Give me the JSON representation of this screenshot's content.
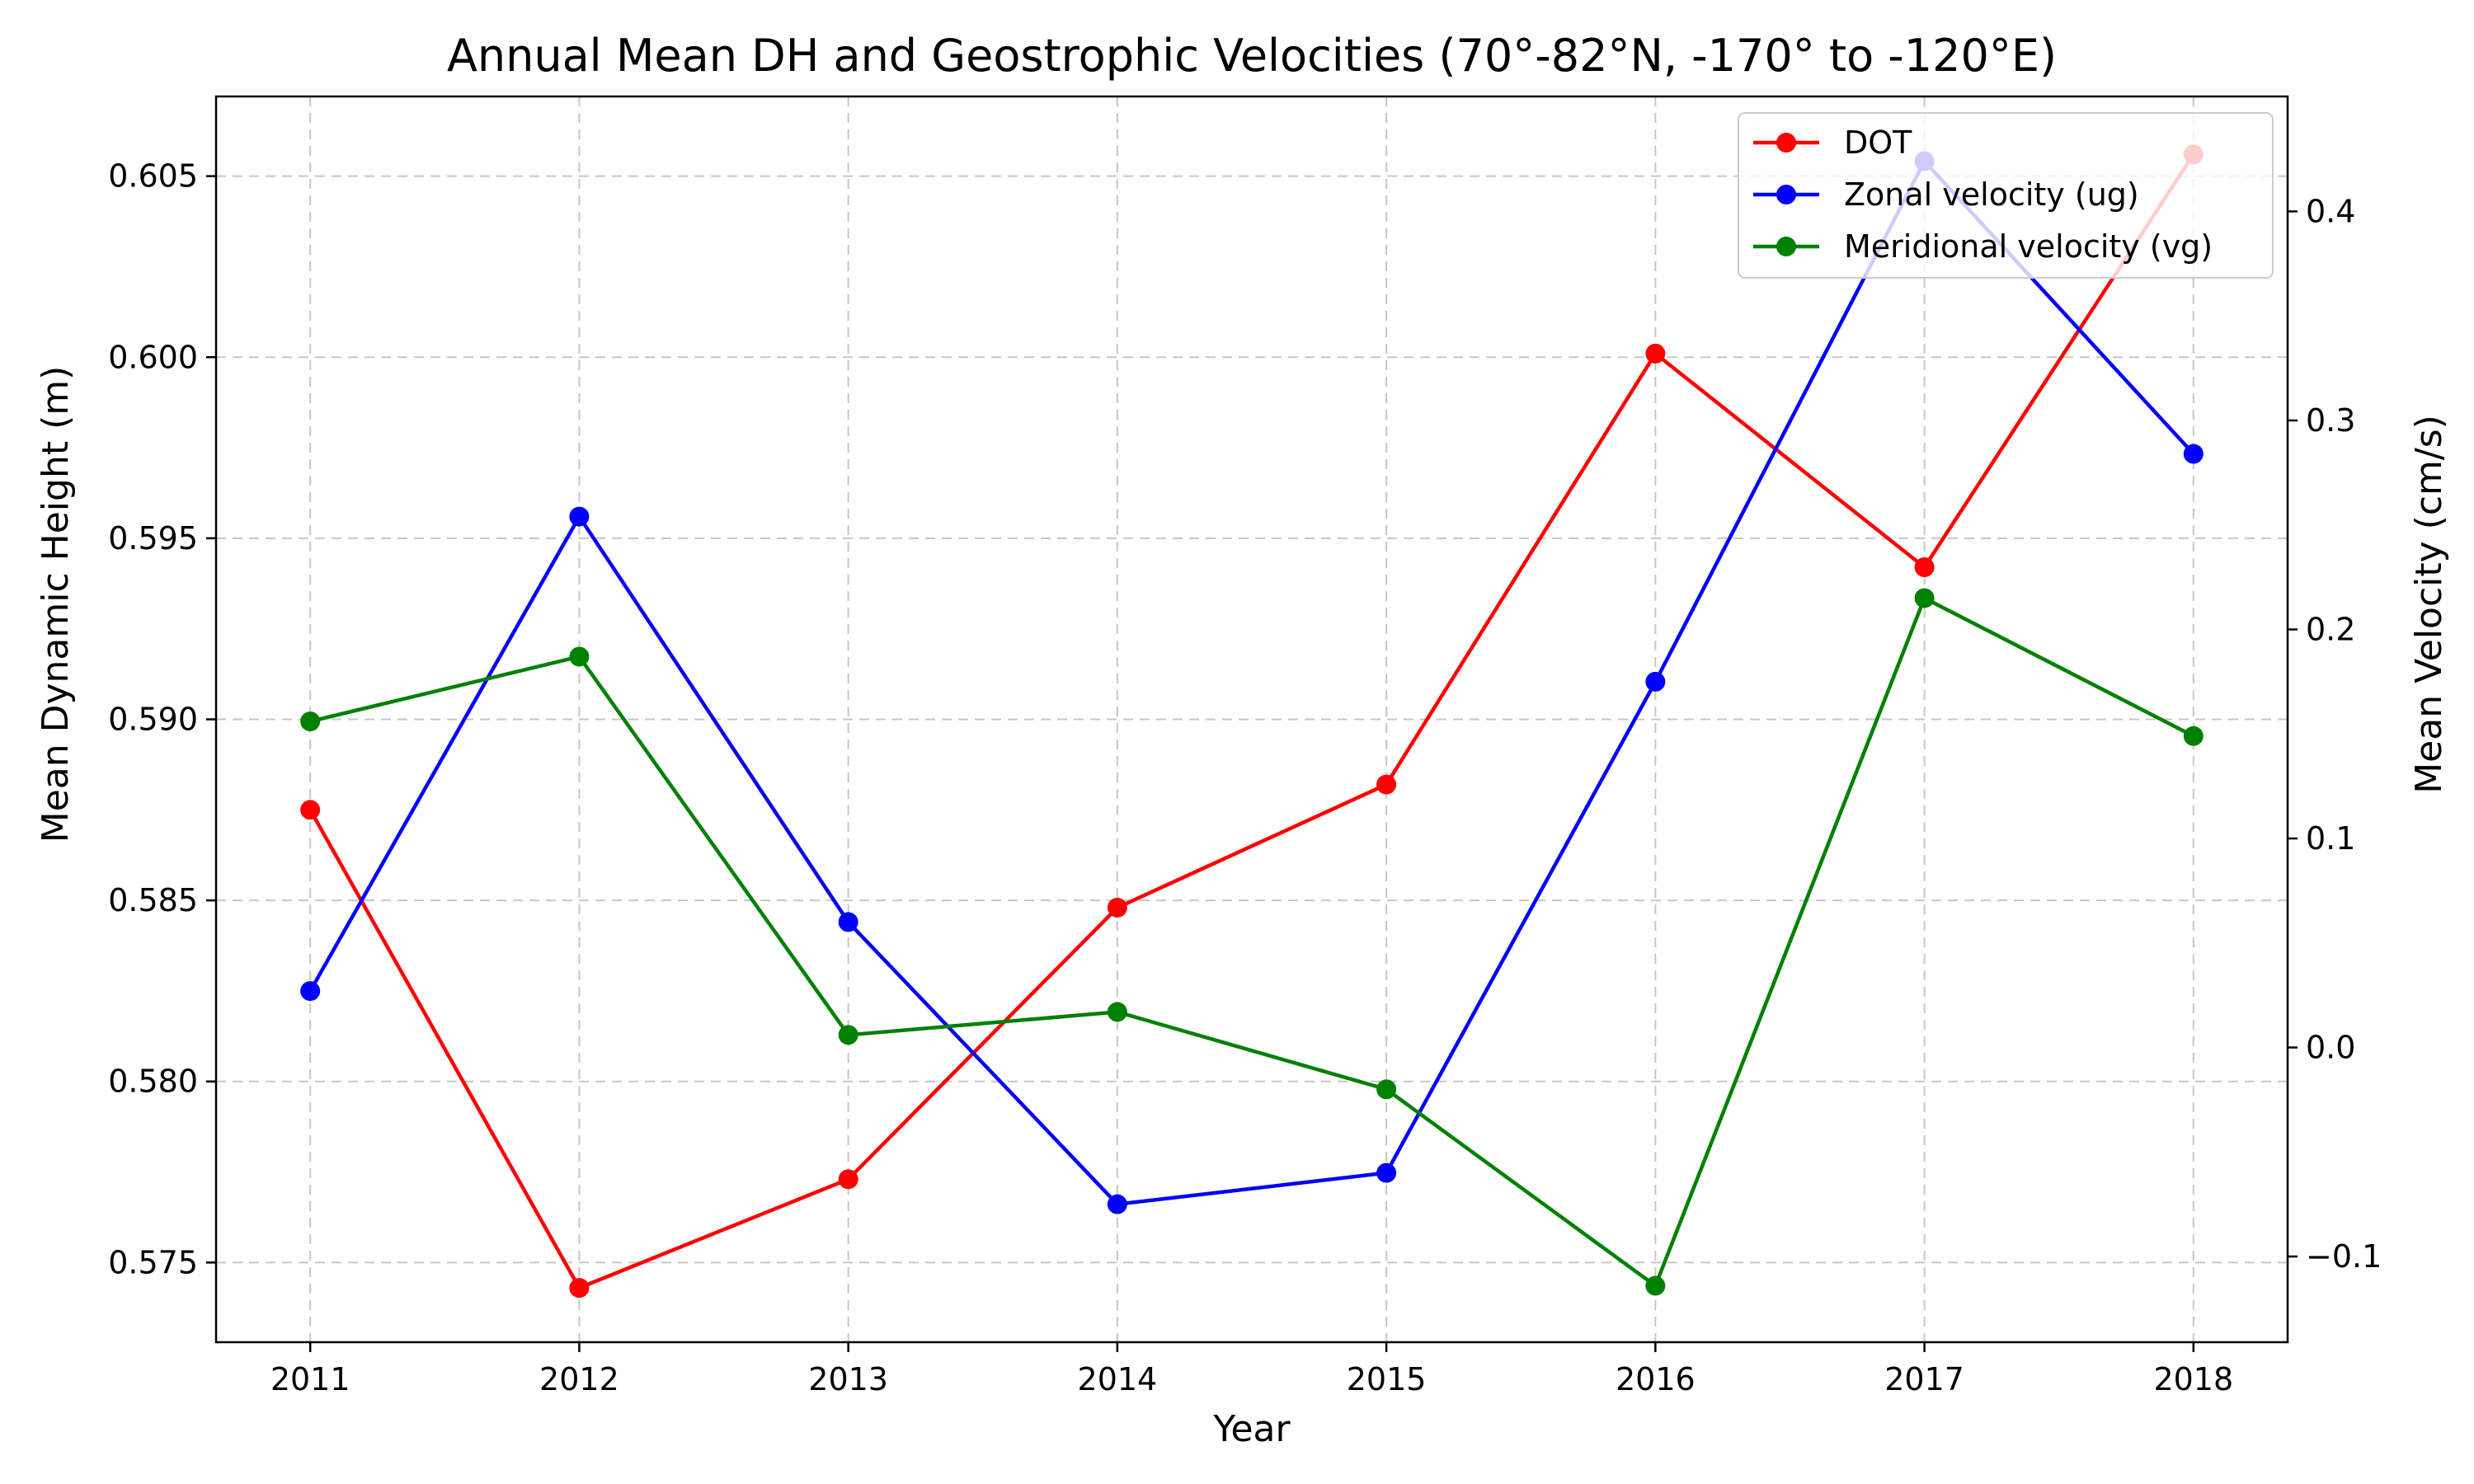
{
  "chart_data": {
    "type": "line",
    "title": "Annual Mean DH and Geostrophic Velocities (70°-82°N, -170° to -120°E)",
    "xlabel": "Year",
    "ylabel_left": "Mean Dynamic Height (m)",
    "ylabel_right": "Mean Velocity (cm/s)",
    "x": [
      2011,
      2012,
      2013,
      2014,
      2015,
      2016,
      2017,
      2018
    ],
    "x_tick_labels": [
      "2011",
      "2012",
      "2013",
      "2014",
      "2015",
      "2016",
      "2017",
      "2018"
    ],
    "xlim": [
      2010.65,
      2018.35
    ],
    "ylim_left": [
      0.5728,
      0.6072
    ],
    "ylim_right": [
      -0.141,
      0.455
    ],
    "y_ticks_left": [
      "0.575",
      "0.580",
      "0.585",
      "0.590",
      "0.595",
      "0.600",
      "0.605"
    ],
    "y_ticks_left_values": [
      0.575,
      0.58,
      0.585,
      0.59,
      0.595,
      0.6,
      0.605
    ],
    "y_ticks_right": [
      "−0.1",
      "0.0",
      "0.1",
      "0.2",
      "0.3",
      "0.4"
    ],
    "y_ticks_right_values": [
      -0.1,
      0.0,
      0.1,
      0.2,
      0.3,
      0.4
    ],
    "grid": true,
    "legend_position": "upper right",
    "series": [
      {
        "name": "DOT",
        "axis": "left",
        "color": "#ff0000",
        "values": [
          0.5875,
          0.5743,
          0.5773,
          0.5848,
          0.5882,
          0.6001,
          0.5942,
          0.6056
        ]
      },
      {
        "name": "Zonal velocity (ug)",
        "axis": "right",
        "color": "#0000ff",
        "values": [
          0.027,
          0.254,
          0.06,
          -0.075,
          -0.06,
          0.175,
          0.424,
          0.284
        ]
      },
      {
        "name": "Meridional velocity (vg)",
        "axis": "right",
        "color": "#008000",
        "values": [
          0.156,
          0.187,
          0.006,
          0.017,
          -0.02,
          -0.114,
          0.215,
          0.149
        ]
      }
    ]
  }
}
